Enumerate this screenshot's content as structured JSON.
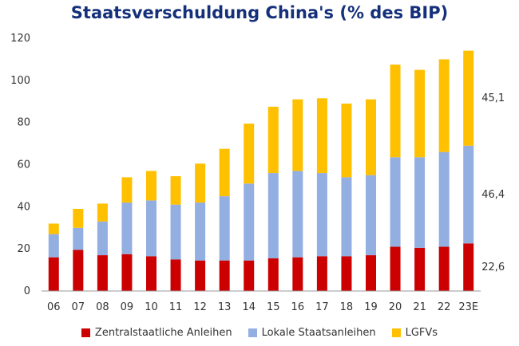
{
  "colors": {
    "central": "#cc0000",
    "local": "#93aee0",
    "lgfv": "#ffc000",
    "title": "#15307a",
    "text": "#333333"
  },
  "chart_data": {
    "type": "bar",
    "stacked": true,
    "title": "Staatsverschuldung China's (% des BIP)",
    "xlabel": "",
    "ylabel": "",
    "ylim": [
      0,
      120
    ],
    "yticks": [
      0,
      20,
      40,
      60,
      80,
      100,
      120
    ],
    "grid": false,
    "legend_position": "bottom",
    "categories": [
      "06",
      "07",
      "08",
      "09",
      "10",
      "11",
      "12",
      "13",
      "14",
      "15",
      "16",
      "17",
      "18",
      "19",
      "20",
      "21",
      "22",
      "23E"
    ],
    "series": [
      {
        "name": "Zentralstaatliche Anleihen",
        "color": "#cc0000",
        "values": [
          16,
          19.5,
          17,
          17.5,
          16.5,
          15,
          14.5,
          14.5,
          14.5,
          15.5,
          16,
          16.5,
          16.5,
          17,
          21,
          20.5,
          21,
          22.6
        ]
      },
      {
        "name": "Lokale Staatsanleihen",
        "color": "#93aee0",
        "values": [
          11,
          10.5,
          16,
          24.5,
          26.5,
          26,
          27.5,
          30.5,
          36.5,
          40.5,
          41,
          39.5,
          37.5,
          38,
          42.5,
          43,
          45,
          46.4
        ]
      },
      {
        "name": "LGFVs",
        "color": "#ffc000",
        "values": [
          5,
          9,
          8.5,
          12,
          14,
          13.5,
          18.5,
          22.5,
          28.5,
          31.5,
          34,
          35.5,
          35,
          36,
          44,
          41.5,
          44,
          45.1
        ]
      }
    ],
    "annotations": [
      {
        "text": "45,1",
        "series": "LGFVs",
        "category": "23E"
      },
      {
        "text": "46,4",
        "series": "Lokale Staatsanleihen",
        "category": "23E"
      },
      {
        "text": "22,6",
        "series": "Zentralstaatliche Anleihen",
        "category": "23E"
      }
    ]
  }
}
